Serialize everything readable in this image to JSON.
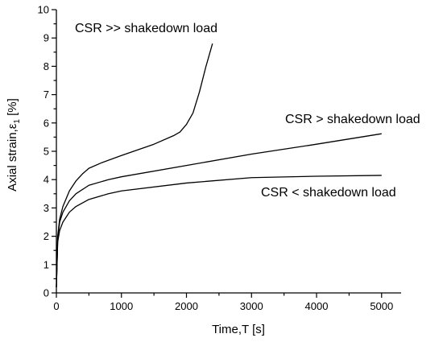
{
  "chart_data": {
    "type": "line",
    "title": "",
    "xlabel": "Time,T [s]",
    "ylabel_main": "Axial strain,ε",
    "ylabel_sub": "1",
    "ylabel_unit": " [%]",
    "xlim": [
      0,
      5300
    ],
    "ylim": [
      0,
      10
    ],
    "xticks": [
      0,
      1000,
      2000,
      3000,
      4000,
      5000
    ],
    "yticks": [
      0,
      1,
      2,
      3,
      4,
      5,
      6,
      7,
      8,
      9,
      10
    ],
    "grid": false,
    "legend": "none",
    "annotations": [
      {
        "text": "CSR >> shakedown load",
        "series": 0
      },
      {
        "text": "CSR > shakedown load",
        "series": 1
      },
      {
        "text": "CSR < shakedown load",
        "series": 2
      }
    ],
    "series": [
      {
        "points": [
          [
            0,
            0.2
          ],
          [
            20,
            2.0
          ],
          [
            50,
            2.6
          ],
          [
            100,
            3.05
          ],
          [
            200,
            3.6
          ],
          [
            300,
            3.95
          ],
          [
            400,
            4.2
          ],
          [
            500,
            4.4
          ],
          [
            700,
            4.6
          ],
          [
            1000,
            4.85
          ],
          [
            1500,
            5.25
          ],
          [
            1800,
            5.55
          ],
          [
            1900,
            5.68
          ],
          [
            2000,
            5.95
          ],
          [
            2100,
            6.35
          ],
          [
            2200,
            7.1
          ],
          [
            2300,
            8.0
          ],
          [
            2400,
            8.8
          ]
        ]
      },
      {
        "points": [
          [
            0,
            0.2
          ],
          [
            20,
            1.9
          ],
          [
            50,
            2.5
          ],
          [
            100,
            2.85
          ],
          [
            200,
            3.25
          ],
          [
            300,
            3.5
          ],
          [
            500,
            3.8
          ],
          [
            800,
            4.0
          ],
          [
            1000,
            4.1
          ],
          [
            2000,
            4.5
          ],
          [
            3000,
            4.9
          ],
          [
            4000,
            5.25
          ],
          [
            5000,
            5.62
          ]
        ]
      },
      {
        "points": [
          [
            0,
            0.2
          ],
          [
            20,
            1.8
          ],
          [
            50,
            2.2
          ],
          [
            100,
            2.5
          ],
          [
            200,
            2.85
          ],
          [
            300,
            3.05
          ],
          [
            500,
            3.3
          ],
          [
            800,
            3.5
          ],
          [
            1000,
            3.6
          ],
          [
            2000,
            3.88
          ],
          [
            3000,
            4.07
          ],
          [
            4000,
            4.12
          ],
          [
            5000,
            4.15
          ]
        ]
      }
    ]
  }
}
